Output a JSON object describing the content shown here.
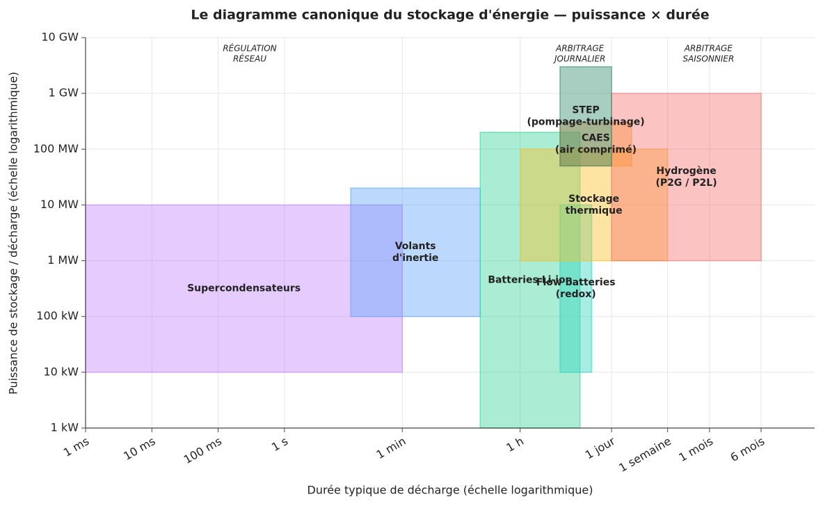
{
  "chart_data": {
    "type": "rectangle",
    "title": "Le diagramme canonique du stockage d'énergie — puissance × durée",
    "x_label": "Durée typique de décharge (échelle logarithmique)",
    "y_label": "Puissance de stockage / décharge (échelle logarithmique)",
    "x_log": true,
    "y_log": true,
    "grid": true,
    "xlim": [
      0.001,
      100000000
    ],
    "ylim": [
      1000,
      10000000000
    ],
    "xticks": [
      {
        "value": 0.001,
        "label": "1 ms"
      },
      {
        "value": 0.01,
        "label": "10 ms"
      },
      {
        "value": 0.1,
        "label": "100 ms"
      },
      {
        "value": 1,
        "label": "1 s"
      },
      {
        "value": 60,
        "label": "1 min"
      },
      {
        "value": 3600,
        "label": "1 h"
      },
      {
        "value": 86400,
        "label": "1 jour"
      },
      {
        "value": 604800,
        "label": "1 semaine"
      },
      {
        "value": 2592000,
        "label": "1 mois"
      },
      {
        "value": 15552000,
        "label": "6 mois"
      }
    ],
    "yticks": [
      {
        "value": 1000,
        "label": "1 kW"
      },
      {
        "value": 10000,
        "label": "10 kW"
      },
      {
        "value": 100000,
        "label": "100 kW"
      },
      {
        "value": 1000000,
        "label": "1 MW"
      },
      {
        "value": 10000000,
        "label": "10 MW"
      },
      {
        "value": 100000000,
        "label": "100 MW"
      },
      {
        "value": 1000000000,
        "label": "1 GW"
      },
      {
        "value": 10000000000,
        "label": "10 GW"
      }
    ],
    "series": [
      {
        "label": [
          "Supercondensateurs"
        ],
        "color": "#c084fc",
        "x": [
          0.001,
          60
        ],
        "y": [
          10000,
          10000000
        ]
      },
      {
        "label": [
          "Volants",
          "d'inertie"
        ],
        "color": "#60a5fa",
        "x": [
          10,
          900
        ],
        "y": [
          100000,
          20000000
        ]
      },
      {
        "label": [
          "Batteries Li-ion"
        ],
        "color": "#34d399",
        "x": [
          900,
          28800
        ],
        "y": [
          1000,
          200000000
        ]
      },
      {
        "label": [
          "Flow batteries",
          "(redox)"
        ],
        "color": "#2dd4bf",
        "x": [
          14400,
          43200
        ],
        "y": [
          10000,
          10000000
        ]
      },
      {
        "label": [
          "Stockage",
          "thermique"
        ],
        "color": "#fbbf24",
        "x": [
          3600,
          604800
        ],
        "y": [
          1000000,
          100000000
        ]
      },
      {
        "label": [
          "Hydrogène",
          "(P2G / P2L)"
        ],
        "color": "#f87171",
        "x": [
          86400,
          15552000
        ],
        "y": [
          1000000,
          1000000000
        ]
      },
      {
        "label": [
          "CAES",
          "(air comprimé)"
        ],
        "color": "#fb923c",
        "x": [
          14400,
          172800
        ],
        "y": [
          50000000,
          300000000
        ]
      },
      {
        "label": [
          "STEP",
          "(pompage-turbinage)"
        ],
        "color": "#2e8b6a",
        "x": [
          14400,
          86400
        ],
        "y": [
          50000000,
          3000000000
        ]
      }
    ],
    "annotations": [
      {
        "lines": [
          "RÉGULATION",
          "RÉSEAU"
        ],
        "x": 0.3
      },
      {
        "lines": [
          "ARBITRAGE",
          "JOURNALIER"
        ],
        "x": 28800
      },
      {
        "lines": [
          "ARBITRAGE",
          "SAISONNIER"
        ],
        "x": 2500000
      }
    ]
  }
}
